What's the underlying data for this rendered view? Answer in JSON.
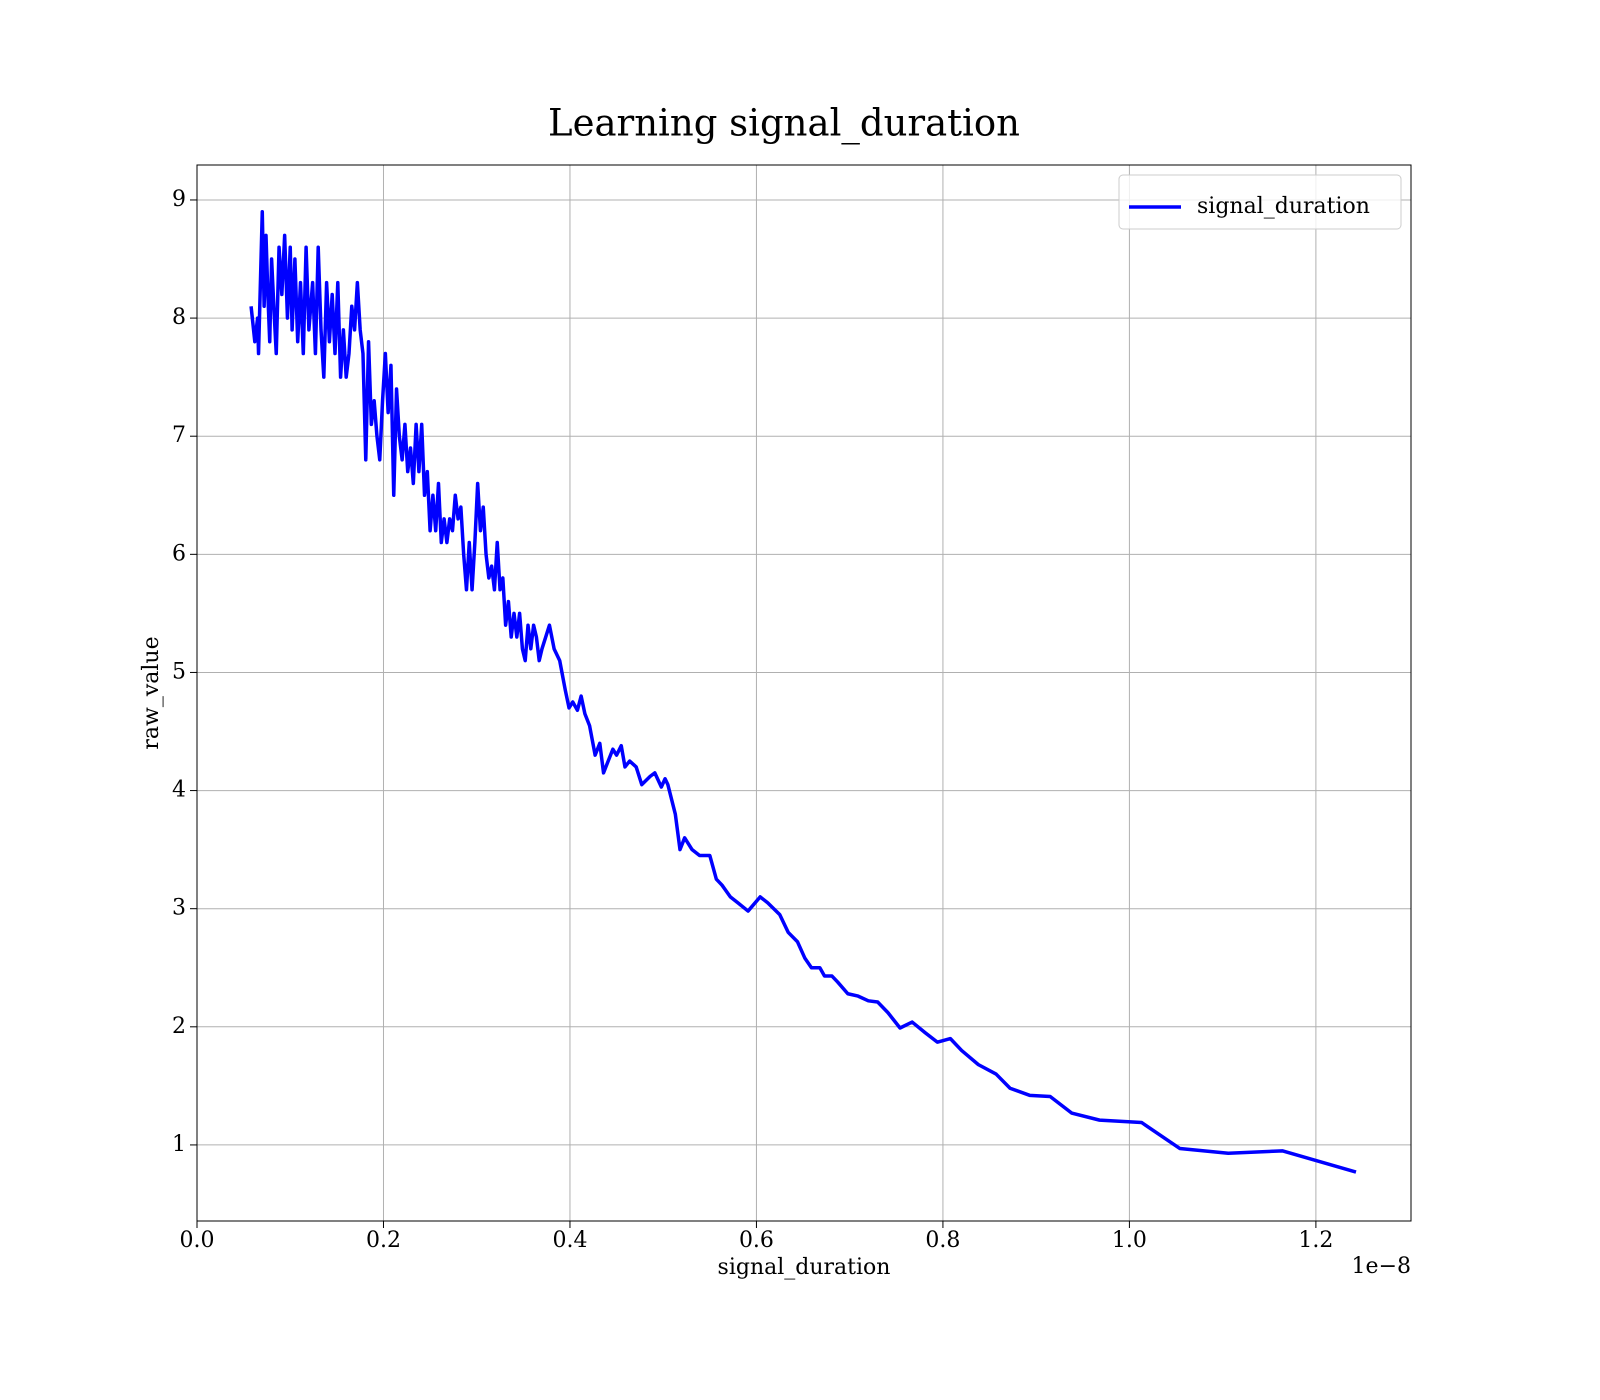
{
  "chart_data": {
    "type": "line",
    "title": "Learning signal_duration",
    "xlabel": "signal_duration",
    "ylabel": "raw_value",
    "x_offset_label": "1e−8",
    "legend": "upper right",
    "grid": true,
    "xlim": [
      0,
      1.302
    ],
    "ylim": [
      0.356,
      9.296
    ],
    "xticks": [
      {
        "value": 0,
        "label": "0.0"
      },
      0.2,
      0.4,
      0.6,
      0.8,
      {
        "value": 1,
        "label": "1.0"
      },
      1.2
    ],
    "yticks": [
      1,
      2,
      3,
      4,
      5,
      6,
      7,
      8,
      9
    ],
    "x": [
      0.058,
      0.062,
      0.065,
      0.066,
      0.069,
      0.07,
      0.072,
      0.074,
      0.076,
      0.078,
      0.08,
      0.083,
      0.085,
      0.088,
      0.091,
      0.094,
      0.097,
      0.1,
      0.102,
      0.105,
      0.108,
      0.111,
      0.114,
      0.117,
      0.12,
      0.124,
      0.127,
      0.13,
      0.133,
      0.136,
      0.139,
      0.142,
      0.145,
      0.148,
      0.151,
      0.154,
      0.157,
      0.16,
      0.163,
      0.166,
      0.169,
      0.172,
      0.175,
      0.178,
      0.181,
      0.184,
      0.187,
      0.19,
      0.193,
      0.196,
      0.199,
      0.202,
      0.205,
      0.208,
      0.211,
      0.214,
      0.217,
      0.22,
      0.223,
      0.226,
      0.229,
      0.232,
      0.235,
      0.238,
      0.241,
      0.244,
      0.247,
      0.25,
      0.253,
      0.256,
      0.259,
      0.262,
      0.265,
      0.268,
      0.271,
      0.274,
      0.277,
      0.28,
      0.283,
      0.286,
      0.289,
      0.292,
      0.295,
      0.298,
      0.301,
      0.304,
      0.307,
      0.31,
      0.313,
      0.316,
      0.319,
      0.322,
      0.325,
      0.328,
      0.331,
      0.334,
      0.337,
      0.34,
      0.343,
      0.346,
      0.349,
      0.352,
      0.355,
      0.358,
      0.361,
      0.364,
      0.367,
      0.37,
      0.378,
      0.383,
      0.389,
      0.395,
      0.399,
      0.403,
      0.408,
      0.412,
      0.416,
      0.421,
      0.427,
      0.432,
      0.436,
      0.441,
      0.446,
      0.45,
      0.455,
      0.459,
      0.464,
      0.471,
      0.477,
      0.486,
      0.491,
      0.498,
      0.502,
      0.505,
      0.513,
      0.518,
      0.523,
      0.531,
      0.539,
      0.55,
      0.557,
      0.563,
      0.572,
      0.58,
      0.591,
      0.604,
      0.612,
      0.625,
      0.634,
      0.644,
      0.652,
      0.659,
      0.668,
      0.673,
      0.681,
      0.687,
      0.698,
      0.709,
      0.72,
      0.73,
      0.741,
      0.754,
      0.767,
      0.781,
      0.794,
      0.808,
      0.82,
      0.838,
      0.857,
      0.872,
      0.893,
      0.915,
      0.938,
      0.968,
      1.013,
      1.054,
      1.106,
      1.164,
      1.243
    ],
    "series": [
      {
        "name": "signal_duration",
        "color": "#0000ff",
        "values": [
          8.1,
          7.8,
          8.0,
          7.7,
          8.6,
          8.9,
          8.1,
          8.7,
          8.2,
          7.8,
          8.5,
          8.0,
          7.7,
          8.6,
          8.2,
          8.7,
          8.0,
          8.6,
          7.9,
          8.5,
          7.8,
          8.3,
          7.7,
          8.6,
          7.9,
          8.3,
          7.7,
          8.6,
          7.9,
          7.5,
          8.3,
          7.8,
          8.2,
          7.7,
          8.3,
          7.5,
          7.9,
          7.5,
          7.7,
          8.1,
          7.9,
          8.3,
          7.9,
          7.7,
          6.8,
          7.8,
          7.1,
          7.3,
          7.0,
          6.8,
          7.3,
          7.7,
          7.2,
          7.6,
          6.5,
          7.4,
          7.0,
          6.8,
          7.1,
          6.7,
          6.9,
          6.6,
          7.1,
          6.7,
          7.1,
          6.5,
          6.7,
          6.2,
          6.5,
          6.2,
          6.6,
          6.1,
          6.3,
          6.1,
          6.3,
          6.2,
          6.5,
          6.3,
          6.4,
          6.0,
          5.7,
          6.1,
          5.7,
          6.1,
          6.6,
          6.2,
          6.4,
          6.0,
          5.8,
          5.9,
          5.7,
          6.1,
          5.7,
          5.8,
          5.4,
          5.6,
          5.3,
          5.5,
          5.3,
          5.5,
          5.2,
          5.1,
          5.4,
          5.2,
          5.4,
          5.3,
          5.1,
          5.2,
          5.4,
          5.2,
          5.1,
          4.85,
          4.7,
          4.75,
          4.68,
          4.8,
          4.65,
          4.55,
          4.3,
          4.4,
          4.15,
          4.25,
          4.35,
          4.3,
          4.38,
          4.2,
          4.25,
          4.2,
          4.05,
          4.12,
          4.15,
          4.03,
          4.1,
          4.05,
          3.8,
          3.5,
          3.6,
          3.5,
          3.45,
          3.45,
          3.25,
          3.2,
          3.1,
          3.05,
          2.98,
          3.1,
          3.05,
          2.95,
          2.8,
          2.72,
          2.58,
          2.5,
          2.5,
          2.43,
          2.43,
          2.38,
          2.28,
          2.26,
          2.22,
          2.21,
          2.12,
          1.99,
          2.04,
          1.95,
          1.87,
          1.9,
          1.8,
          1.68,
          1.6,
          1.48,
          1.42,
          1.41,
          1.27,
          1.21,
          1.19,
          0.97,
          0.93,
          0.95,
          0.77
        ]
      }
    ]
  }
}
